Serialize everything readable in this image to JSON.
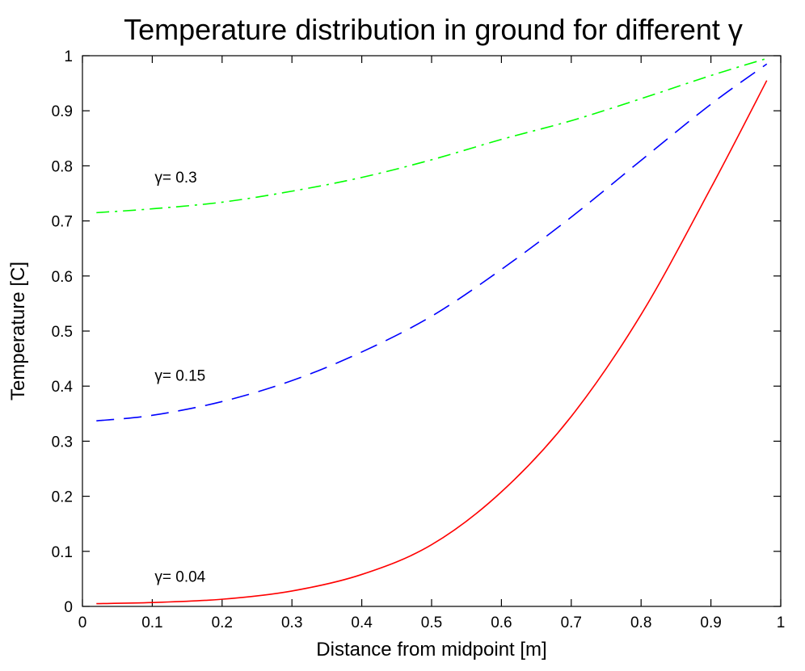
{
  "chart_data": {
    "type": "line",
    "title": "Temperature distribution in ground for different γ",
    "xlabel": "Distance from midpoint [m]",
    "ylabel": "Temperature [C]",
    "xlim": [
      0,
      1
    ],
    "ylim": [
      0,
      1
    ],
    "xticks": [
      0,
      0.1,
      0.2,
      0.3,
      0.4,
      0.5,
      0.6,
      0.7,
      0.8,
      0.9,
      1
    ],
    "yticks": [
      0,
      0.1,
      0.2,
      0.3,
      0.4,
      0.5,
      0.6,
      0.7,
      0.8,
      0.9,
      1
    ],
    "xtick_labels": [
      "0",
      "0.1",
      "0.2",
      "0.3",
      "0.4",
      "0.5",
      "0.6",
      "0.7",
      "0.8",
      "0.9",
      "1"
    ],
    "ytick_labels": [
      "0",
      "0.1",
      "0.2",
      "0.3",
      "0.4",
      "0.5",
      "0.6",
      "0.7",
      "0.8",
      "0.9",
      "1"
    ],
    "grid": false,
    "series": [
      {
        "label": "γ= 0.3",
        "color": "#00ff00",
        "style": "dash-dot",
        "x": [
          0.02,
          0.1,
          0.2,
          0.3,
          0.4,
          0.5,
          0.6,
          0.7,
          0.8,
          0.9,
          0.98
        ],
        "y": [
          0.715,
          0.722,
          0.734,
          0.754,
          0.779,
          0.811,
          0.848,
          0.882,
          0.922,
          0.964,
          0.995
        ]
      },
      {
        "label": "γ= 0.15",
        "color": "#0000ff",
        "style": "dash",
        "x": [
          0.02,
          0.1,
          0.2,
          0.3,
          0.4,
          0.5,
          0.6,
          0.7,
          0.8,
          0.9,
          0.98
        ],
        "y": [
          0.337,
          0.347,
          0.372,
          0.41,
          0.462,
          0.527,
          0.612,
          0.707,
          0.81,
          0.912,
          0.985
        ]
      },
      {
        "label": "γ= 0.04",
        "color": "#ff0000",
        "style": "solid",
        "x": [
          0.02,
          0.1,
          0.2,
          0.3,
          0.4,
          0.5,
          0.6,
          0.7,
          0.8,
          0.9,
          0.98
        ],
        "y": [
          0.005,
          0.007,
          0.013,
          0.028,
          0.058,
          0.112,
          0.208,
          0.345,
          0.53,
          0.76,
          0.955
        ]
      }
    ],
    "annotations": [
      {
        "text": "γ= 0.3",
        "x": 0.1,
        "y": 0.77
      },
      {
        "text": "γ= 0.15",
        "x": 0.1,
        "y": 0.41
      },
      {
        "text": "γ= 0.04",
        "x": 0.1,
        "y": 0.045
      }
    ]
  }
}
